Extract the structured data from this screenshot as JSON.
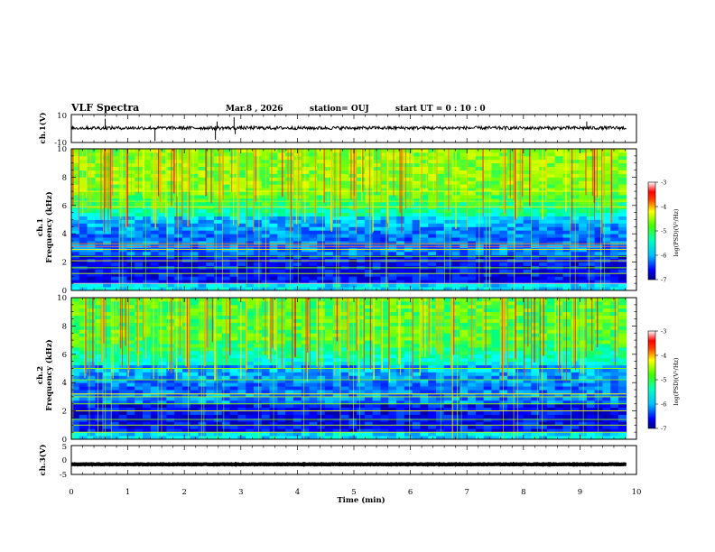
{
  "chart_data": {
    "type": "heatmap",
    "header": {
      "title": "VLF Spectra",
      "date": "Mar.8 , 2026",
      "station": "station= OUJ",
      "start": "start UT =  0 : 10 : 0"
    },
    "x_axis": {
      "label": "Time (min)",
      "range": [
        0,
        10
      ],
      "ticks": [
        "0",
        "1",
        "2",
        "3",
        "4",
        "5",
        "6",
        "7",
        "8",
        "9",
        "10"
      ]
    },
    "data_end_min": 9.82,
    "panels": [
      {
        "name": "ch.1 waveform",
        "kind": "line",
        "ylabel": "ch.1(V)",
        "yrange": [
          -10,
          10
        ],
        "yticks": [
          "10",
          "-10"
        ],
        "baseline_v": 0.4,
        "spikes": [
          {
            "t": 0.6,
            "v": 7
          },
          {
            "t": 1.48,
            "v": -9
          },
          {
            "t": 2.55,
            "v": -8
          },
          {
            "t": 2.58,
            "v": 5
          },
          {
            "t": 2.88,
            "v": 8
          },
          {
            "t": 2.9,
            "v": -4
          },
          {
            "t": 9.12,
            "v": 5
          }
        ]
      },
      {
        "name": "ch.1 spectrogram",
        "kind": "spectrogram",
        "ylabel": "ch.1 Frequency (kHz)",
        "yrange": [
          0,
          10
        ],
        "yticks": [
          "0",
          "2",
          "4",
          "6",
          "8",
          "10"
        ],
        "colorbar": {
          "label": "log(PSD)(V²/Hz)",
          "range": [
            -7,
            -3
          ],
          "ticks": [
            "-3",
            "-4",
            "-5",
            "-6",
            "-7"
          ]
        }
      },
      {
        "name": "ch.2 spectrogram",
        "kind": "spectrogram",
        "ylabel": "ch.2 Frequency (kHz)",
        "yrange": [
          0,
          10
        ],
        "yticks": [
          "0",
          "2",
          "4",
          "6",
          "8",
          "10"
        ],
        "colorbar": {
          "label": "log(PSD)(V²/Hz)",
          "range": [
            -7,
            -3
          ],
          "ticks": [
            "-3",
            "-4",
            "-5",
            "-6",
            "-7"
          ]
        }
      },
      {
        "name": "ch.3 waveform",
        "kind": "line",
        "ylabel": "ch.3(V)",
        "yrange": [
          -5,
          5
        ],
        "yticks": [
          "5",
          "0",
          "-5"
        ],
        "baseline_v": -1.5
      }
    ],
    "colormap": [
      "#000080",
      "#0000ff",
      "#0080ff",
      "#00ffff",
      "#00ff80",
      "#80ff00",
      "#ffff00",
      "#ff8000",
      "#ff0000",
      "#ffc0c0",
      "#ffffff"
    ]
  }
}
